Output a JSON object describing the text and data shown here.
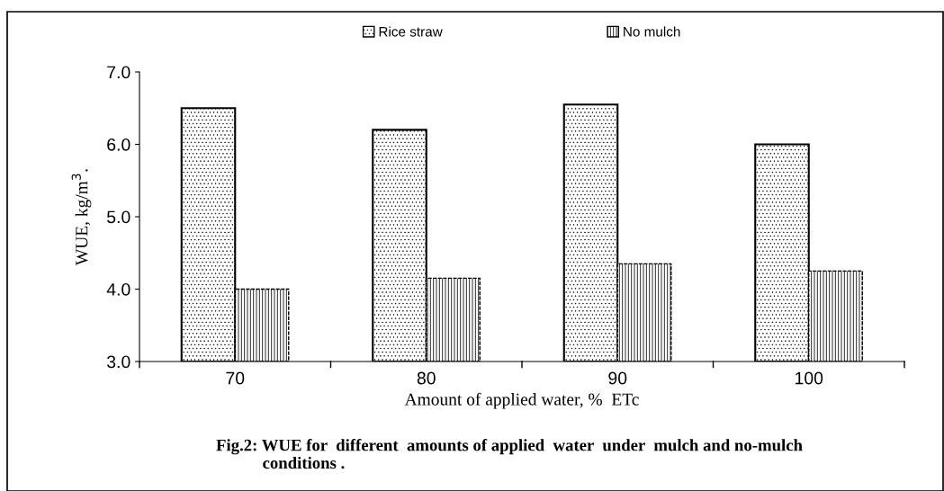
{
  "chart_data": {
    "type": "bar",
    "categories": [
      "70",
      "80",
      "90",
      "100"
    ],
    "xlabel": "Amount of applied water, %  ETc",
    "ylabel": "WUE, kg/m$^{3}$.",
    "series": [
      {
        "name": "Rice straw",
        "color": "#000000",
        "values": [
          6.5,
          6.2,
          6.55,
          6.0
        ]
      },
      {
        "name": "No mulch",
        "color": "#000000",
        "values": [
          4.0,
          4.15,
          4.35,
          4.25
        ]
      }
    ],
    "ylim": [
      3.0,
      7.0
    ],
    "yticks": [
      {
        "value": 3,
        "label": "3.0"
      },
      {
        "value": 4,
        "label": "4.0"
      },
      {
        "value": 5,
        "label": "5.0"
      },
      {
        "value": 6,
        "label": "6.0"
      },
      {
        "value": 7,
        "label": "7.0"
      }
    ],
    "legend": "top",
    "grid": false,
    "annotations": [
      "Fig.2: WUE for  different  amounts of applied  water  under  mulch and no-mulch\n           conditions ."
    ]
  }
}
